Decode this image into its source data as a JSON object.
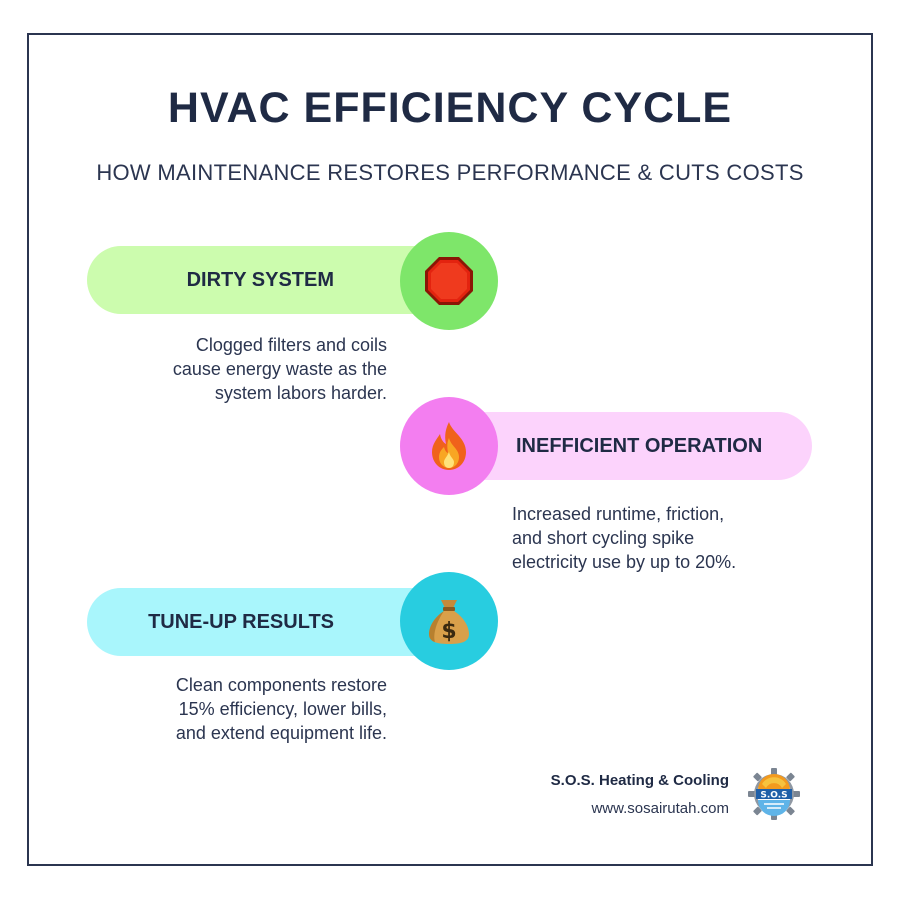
{
  "title": "HVAC EFFICIENCY CYCLE",
  "subtitle": "HOW MAINTENANCE RESTORES PERFORMANCE & CUTS COSTS",
  "steps": [
    {
      "label": "DIRTY SYSTEM",
      "icon": "stop-sign-icon",
      "pill_color": "#ccfcae",
      "circle_color": "#7ee66a",
      "description": [
        "Clogged filters and coils",
        "cause energy waste as the",
        "system labors harder."
      ]
    },
    {
      "label": "INEFFICIENT OPERATION",
      "icon": "fire-icon",
      "pill_color": "#fcd3fc",
      "circle_color": "#f37ef0",
      "description": [
        "Increased runtime, friction,",
        "and short cycling spike",
        "electricity use by up to 20%."
      ]
    },
    {
      "label": "TUNE-UP RESULTS",
      "icon": "money-bag-icon",
      "pill_color": "#a9f6fc",
      "circle_color": "#28cde0",
      "description": [
        "Clean components restore",
        "15% efficiency, lower bills,",
        "and extend equipment life."
      ]
    }
  ],
  "brand": {
    "name": "S.O.S. Heating & Cooling",
    "url": "www.sosairutah.com",
    "logo_text": "S.O.S"
  }
}
